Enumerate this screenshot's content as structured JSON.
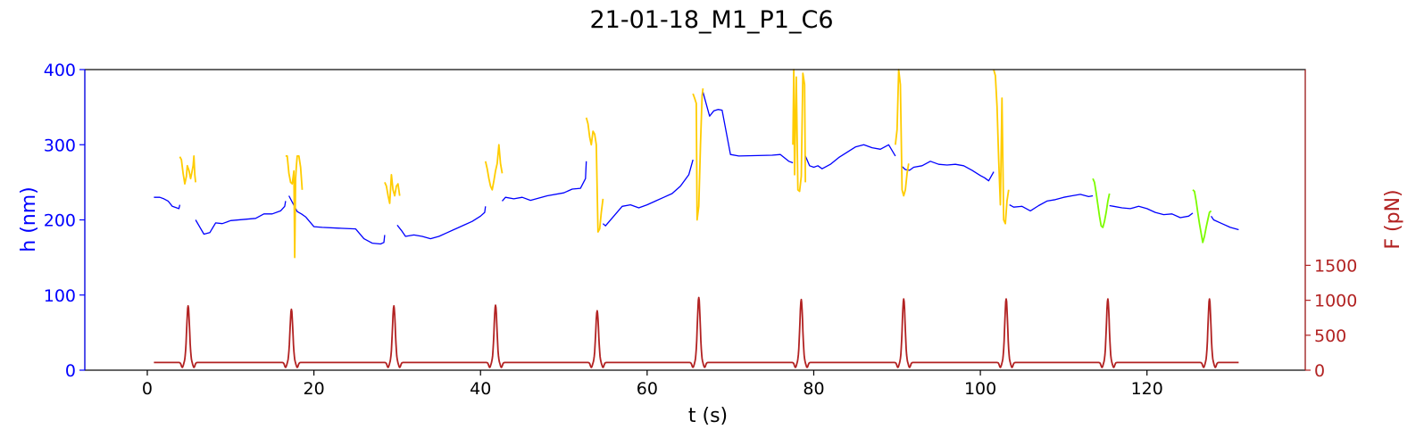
{
  "chart_data": {
    "type": "line",
    "title": "21-01-18_M1_P1_C6",
    "xlabel": "t (s)",
    "ylabel_left": "h (nm)",
    "ylabel_right": "F (pN)",
    "xlim": [
      -7.5,
      139
    ],
    "xticks": [
      0,
      20,
      40,
      60,
      80,
      100,
      120
    ],
    "ylim_left": [
      0,
      400
    ],
    "yticks_left": [
      0,
      100,
      200,
      300,
      400
    ],
    "ylim_right": [
      0,
      4300
    ],
    "yticks_right": [
      0,
      500,
      1000,
      1500
    ],
    "grid": false,
    "colors": {
      "h_baseline": "#0000ff",
      "h_yellow": "#ffcc00",
      "h_green": "#7cfc00",
      "force": "#b22222",
      "left_axis": "#0000ff",
      "right_axis": "#b22222"
    },
    "series": [
      {
        "axis": "left",
        "color": "#0000ff",
        "x": [
          0.8,
          1.5,
          2.0,
          2.5,
          3.0,
          3.8,
          3.9,
          5.8,
          6.8,
          7.5,
          8.2,
          9.0,
          10.0,
          13.0,
          14.0,
          15.0,
          16.0,
          16.5,
          16.6,
          17.0,
          18.0,
          18.5,
          19.0,
          20.0,
          21.0,
          23.0,
          25.0,
          26.0,
          27.0,
          28.0,
          28.4,
          28.5,
          30.0,
          30.5,
          31.0,
          32.0,
          33.0,
          34.0,
          35.0,
          36.0,
          37.0,
          38.0,
          39.0,
          40.0,
          40.5,
          40.6,
          42.6,
          43.0,
          44.0,
          45.0,
          46.0,
          48.0,
          50.0,
          51.0,
          52.0,
          52.6,
          52.7,
          54.7,
          55.0,
          56.0,
          57.0,
          58.0,
          59.0,
          60.0,
          61.0,
          62.0,
          63.0,
          64.0,
          65.0,
          65.5,
          66.7,
          67.5,
          68.0,
          68.5,
          69.0,
          70.0,
          71.0,
          75.0,
          76.0,
          77.0,
          77.5,
          79.0,
          79.5,
          80.0,
          80.5,
          81.0,
          82.0,
          83.0,
          84.0,
          85.0,
          86.0,
          87.0,
          88.0,
          89.0,
          89.8,
          90.5,
          91.0,
          91.5,
          92.0,
          93.0,
          94.0,
          95.0,
          96.0,
          97.0,
          98.0,
          99.0,
          100.0,
          100.5,
          101.0,
          101.5,
          101.6,
          103.5,
          104.0,
          105.0,
          106.0,
          107.0,
          108.0,
          109.0,
          110.0,
          111.0,
          112.0,
          113.0,
          113.5,
          115.5,
          116.0,
          117.0,
          118.0,
          119.0,
          120.0,
          121.0,
          122.0,
          123.0,
          124.0,
          125.0,
          125.5,
          127.7,
          128.0,
          129.0,
          130.0,
          131.0
        ],
        "y": [
          230,
          230,
          228,
          225,
          218,
          215,
          220,
          200,
          181,
          183,
          196,
          195,
          199,
          202,
          208,
          208,
          212,
          218,
          225,
          232,
          211,
          208,
          204,
          191,
          190,
          189,
          188,
          175,
          169,
          168,
          170,
          180,
          193,
          186,
          178,
          180,
          178,
          175,
          178,
          183,
          188,
          193,
          198,
          205,
          210,
          218,
          225,
          230,
          228,
          230,
          226,
          232,
          236,
          241,
          242,
          255,
          278,
          195,
          192,
          205,
          218,
          220,
          216,
          220,
          225,
          230,
          235,
          245,
          260,
          280,
          370,
          338,
          345,
          347,
          346,
          287,
          285,
          286,
          287,
          278,
          276,
          285,
          272,
          270,
          272,
          268,
          274,
          283,
          290,
          297,
          300,
          296,
          294,
          300,
          285,
          272,
          267,
          266,
          270,
          272,
          278,
          274,
          273,
          274,
          272,
          266,
          259,
          256,
          252,
          262,
          264,
          220,
          217,
          218,
          212,
          219,
          225,
          227,
          230,
          232,
          234,
          231,
          232,
          219,
          218,
          216,
          215,
          218,
          215,
          210,
          207,
          208,
          203,
          205,
          209,
          205,
          200,
          195,
          190,
          187
        ],
        "gaps_after_x": [
          3.9,
          16.6,
          28.5,
          40.6,
          52.7,
          65.5,
          77.5,
          89.8,
          101.6,
          113.5,
          125.5
        ]
      },
      {
        "axis": "left",
        "color": "#ffcc00",
        "segments": [
          {
            "x": [
              3.9,
              4.1,
              4.3,
              4.5,
              4.7,
              4.8,
              5.0,
              5.2,
              5.3,
              5.5,
              5.6,
              5.7,
              5.8
            ],
            "y": [
              284,
              280,
              262,
              248,
              258,
              272,
              266,
              255,
              260,
              272,
              285,
              260,
              250
            ]
          },
          {
            "x": [
              16.6,
              16.8,
              17.0,
              17.2,
              17.4,
              17.6,
              17.7,
              17.8,
              17.9,
              18.0,
              18.2,
              18.4,
              18.6
            ],
            "y": [
              285,
              285,
              262,
              250,
              248,
              265,
              150,
              255,
              272,
              285,
              285,
              270,
              240
            ]
          },
          {
            "x": [
              28.5,
              28.7,
              28.9,
              29.1,
              29.3,
              29.5,
              29.7,
              29.9,
              30.1,
              30.3
            ],
            "y": [
              250,
              245,
              232,
              222,
              260,
              240,
              232,
              245,
              248,
              232
            ]
          },
          {
            "x": [
              40.6,
              40.8,
              41.0,
              41.2,
              41.4,
              41.6,
              41.8,
              42.0,
              42.2,
              42.4,
              42.6
            ],
            "y": [
              278,
              268,
              255,
              245,
              240,
              252,
              265,
              275,
              300,
              275,
              262
            ]
          },
          {
            "x": [
              52.7,
              52.9,
              53.1,
              53.3,
              53.5,
              53.7,
              53.9,
              54.1,
              54.3,
              54.5,
              54.7
            ],
            "y": [
              336,
              328,
              310,
              300,
              318,
              314,
              300,
              184,
              188,
              210,
              228
            ]
          },
          {
            "x": [
              65.5,
              65.7,
              65.9,
              66.0,
              66.2,
              66.4,
              66.6,
              66.7
            ],
            "y": [
              368,
              362,
              355,
              200,
              218,
              300,
              365,
              375
            ]
          },
          {
            "x": [
              77.5,
              77.6,
              77.7,
              77.9,
              78.1,
              78.3,
              78.5,
              78.7,
              78.9,
              79.0
            ],
            "y": [
              300,
              400,
              260,
              390,
              240,
              238,
              258,
              395,
              380,
              250
            ]
          },
          {
            "x": [
              89.8,
              90.0,
              90.2,
              90.4,
              90.6,
              90.8,
              91.0,
              91.2,
              91.4
            ],
            "y": [
              300,
              320,
              400,
              380,
              240,
              232,
              240,
              262,
              275
            ]
          },
          {
            "x": [
              101.6,
              101.8,
              102.0,
              102.2,
              102.4,
              102.6,
              102.8,
              103.0,
              103.2,
              103.4
            ],
            "y": [
              400,
              392,
              350,
              280,
              220,
              362,
              200,
              195,
              225,
              240
            ]
          }
        ]
      },
      {
        "axis": "left",
        "color": "#7cfc00",
        "segments": [
          {
            "x": [
              113.5,
              113.7,
              113.9,
              114.1,
              114.3,
              114.5,
              114.7,
              114.9,
              115.1,
              115.3,
              115.5
            ],
            "y": [
              255,
              250,
              236,
              220,
              205,
              192,
              190,
              198,
              210,
              225,
              235
            ]
          },
          {
            "x": [
              125.5,
              125.7,
              125.9,
              126.1,
              126.3,
              126.5,
              126.7,
              126.9,
              127.1,
              127.3,
              127.5,
              127.7
            ],
            "y": [
              240,
              238,
              225,
              210,
              195,
              182,
              170,
              178,
              190,
              200,
              210,
              212
            ]
          }
        ]
      },
      {
        "axis": "right",
        "color": "#b22222",
        "baseline": 110,
        "peak_centers": [
          4.9,
          17.3,
          29.6,
          41.8,
          54.0,
          66.2,
          78.5,
          90.8,
          103.1,
          115.3,
          127.5
        ],
        "peak_values": [
          920,
          870,
          920,
          930,
          850,
          1040,
          1010,
          1020,
          1020,
          1020,
          1020
        ]
      }
    ]
  }
}
